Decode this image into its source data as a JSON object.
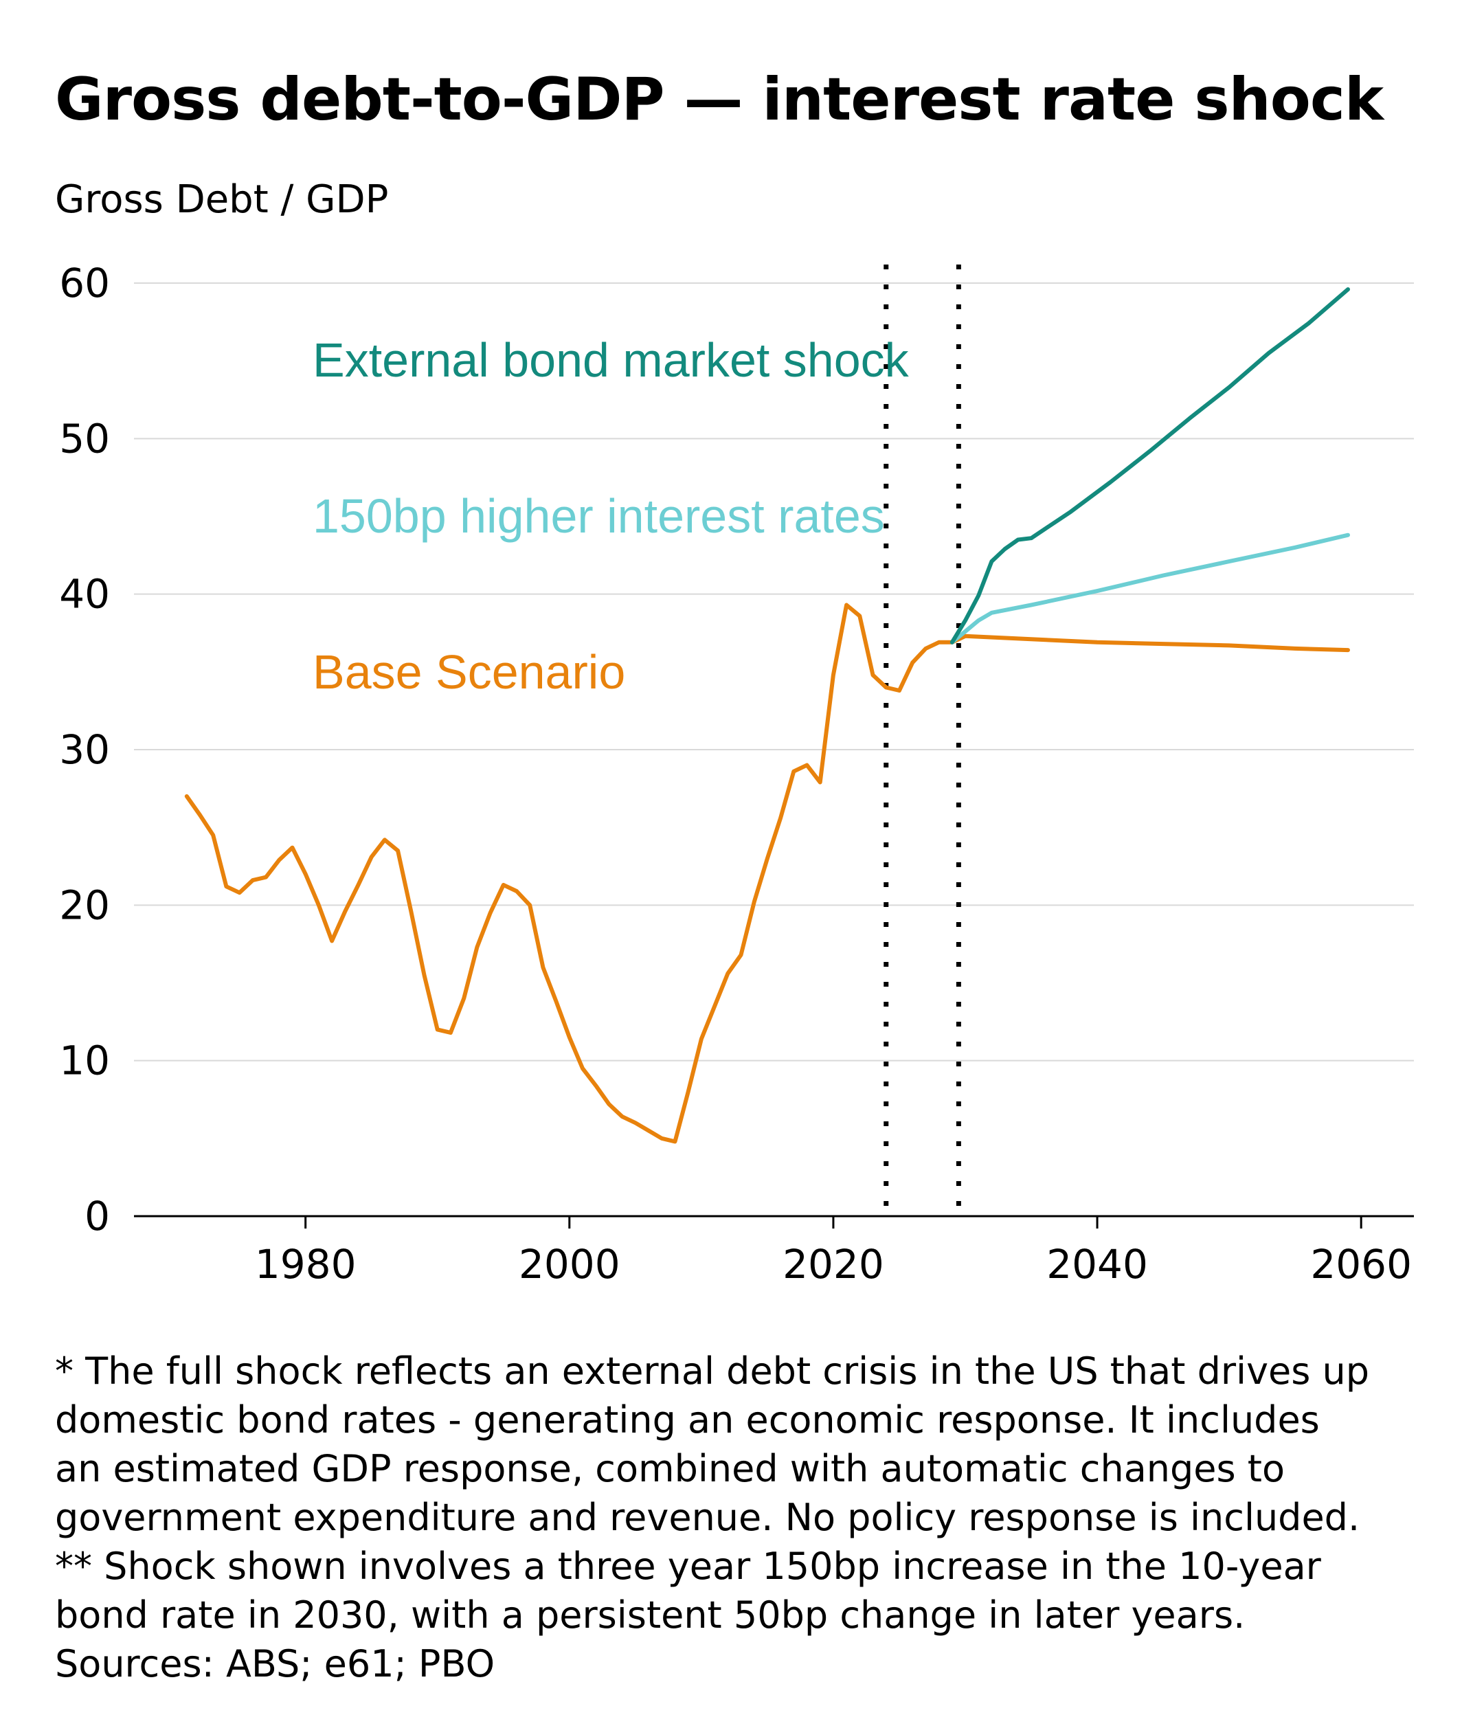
{
  "title": "Gross debt-to-GDP — interest rate shock",
  "colors": {
    "base": "#E8820C",
    "higher_rates": "#6CCED3",
    "external_shock": "#138A7D",
    "grid": "#d9d9d9",
    "axis": "#000000",
    "marker": "#000000"
  },
  "chart_data": {
    "type": "line",
    "title": "Gross debt-to-GDP — interest rate shock",
    "xlabel": "",
    "ylabel": "Gross Debt / GDP",
    "xlim": [
      1967,
      2064
    ],
    "ylim": [
      0,
      60
    ],
    "x_ticks": [
      1980,
      2000,
      2020,
      2040,
      2060
    ],
    "y_ticks": [
      0,
      10,
      20,
      30,
      40,
      50,
      60
    ],
    "grid": "horizontal",
    "vertical_markers": [
      2024,
      2029.5
    ],
    "series": [
      {
        "name": "Base Scenario",
        "color": "#E8820C",
        "label_position": "left, below other labels",
        "points": [
          [
            1971,
            27.0
          ],
          [
            1972,
            25.8
          ],
          [
            1973,
            24.5
          ],
          [
            1974,
            21.2
          ],
          [
            1975,
            20.8
          ],
          [
            1976,
            21.6
          ],
          [
            1977,
            21.8
          ],
          [
            1978,
            22.9
          ],
          [
            1979,
            23.7
          ],
          [
            1980,
            22.0
          ],
          [
            1981,
            20.0
          ],
          [
            1982,
            17.7
          ],
          [
            1983,
            19.6
          ],
          [
            1984,
            21.3
          ],
          [
            1985,
            23.1
          ],
          [
            1986,
            24.2
          ],
          [
            1987,
            23.5
          ],
          [
            1988,
            19.6
          ],
          [
            1989,
            15.5
          ],
          [
            1990,
            12.0
          ],
          [
            1991,
            11.8
          ],
          [
            1992,
            14.0
          ],
          [
            1993,
            17.3
          ],
          [
            1994,
            19.5
          ],
          [
            1995,
            21.3
          ],
          [
            1996,
            20.9
          ],
          [
            1997,
            20.0
          ],
          [
            1998,
            16.0
          ],
          [
            1999,
            13.8
          ],
          [
            2000,
            11.5
          ],
          [
            2001,
            9.5
          ],
          [
            2002,
            8.4
          ],
          [
            2003,
            7.2
          ],
          [
            2004,
            6.4
          ],
          [
            2005,
            6.0
          ],
          [
            2006,
            5.5
          ],
          [
            2007,
            5.0
          ],
          [
            2008,
            4.8
          ],
          [
            2009,
            8.0
          ],
          [
            2010,
            11.4
          ],
          [
            2011,
            13.5
          ],
          [
            2012,
            15.6
          ],
          [
            2013,
            16.8
          ],
          [
            2014,
            20.2
          ],
          [
            2015,
            23.0
          ],
          [
            2016,
            25.6
          ],
          [
            2017,
            28.6
          ],
          [
            2018,
            29.0
          ],
          [
            2019,
            27.9
          ],
          [
            2020,
            34.8
          ],
          [
            2021,
            39.3
          ],
          [
            2022,
            38.6
          ],
          [
            2023,
            34.8
          ],
          [
            2024,
            34.0
          ],
          [
            2025,
            33.8
          ],
          [
            2026,
            35.6
          ],
          [
            2027,
            36.5
          ],
          [
            2028,
            36.9
          ],
          [
            2029,
            36.9
          ],
          [
            2030,
            37.3
          ],
          [
            2035,
            37.1
          ],
          [
            2040,
            36.9
          ],
          [
            2045,
            36.8
          ],
          [
            2050,
            36.7
          ],
          [
            2055,
            36.5
          ],
          [
            2059,
            36.4
          ]
        ]
      },
      {
        "name": "150bp higher interest rates",
        "color": "#6CCED3",
        "label_position": "left, middle",
        "points": [
          [
            2029,
            36.9
          ],
          [
            2030,
            37.6
          ],
          [
            2031,
            38.3
          ],
          [
            2032,
            38.8
          ],
          [
            2035,
            39.3
          ],
          [
            2040,
            40.2
          ],
          [
            2045,
            41.2
          ],
          [
            2050,
            42.1
          ],
          [
            2055,
            43.0
          ],
          [
            2059,
            43.8
          ]
        ]
      },
      {
        "name": "External bond market shock",
        "color": "#138A7D",
        "label_position": "left, top",
        "points": [
          [
            2029,
            36.9
          ],
          [
            2030,
            38.3
          ],
          [
            2031,
            39.9
          ],
          [
            2032,
            42.1
          ],
          [
            2033,
            42.9
          ],
          [
            2034,
            43.5
          ],
          [
            2035,
            43.6
          ],
          [
            2038,
            45.3
          ],
          [
            2041,
            47.2
          ],
          [
            2044,
            49.2
          ],
          [
            2047,
            51.3
          ],
          [
            2050,
            53.3
          ],
          [
            2053,
            55.5
          ],
          [
            2056,
            57.4
          ],
          [
            2059,
            59.6
          ]
        ]
      }
    ]
  },
  "notes": [
    "* The full shock reflects an external debt crisis in the US that drives up",
    "domestic bond rates - generating an economic response. It includes",
    "an estimated GDP response, combined with automatic changes to",
    "government expenditure and revenue. No policy response is included.",
    "** Shock shown involves a three year 150bp increase in the 10-year",
    "bond rate in 2030, with a persistent 50bp change in later years.",
    "Sources: ABS; e61; PBO"
  ]
}
